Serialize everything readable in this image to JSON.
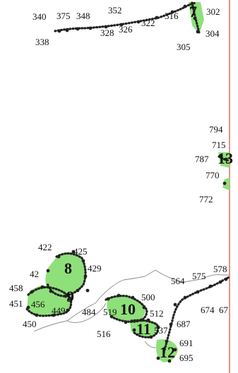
{
  "map": {
    "colors": {
      "survey_area": "#8fe07a",
      "survey_points": "#222222",
      "boundary_line": "#d44a3a",
      "road_line": "#8a8a8a"
    },
    "zones": [
      "7",
      "8",
      "9",
      "10",
      "11",
      "12",
      "13"
    ],
    "point_labels": [
      "340",
      "375",
      "348",
      "352",
      "338",
      "328",
      "326",
      "322",
      "316",
      "302",
      "304",
      "305",
      "794",
      "715",
      "787",
      "770",
      "772",
      "422",
      "425",
      "42",
      "429",
      "458",
      "450",
      "451",
      "456",
      "449",
      "484",
      "519",
      "500",
      "512",
      "516",
      "537",
      "687",
      "691",
      "695",
      "564",
      "575",
      "578",
      "674",
      "67"
    ]
  }
}
